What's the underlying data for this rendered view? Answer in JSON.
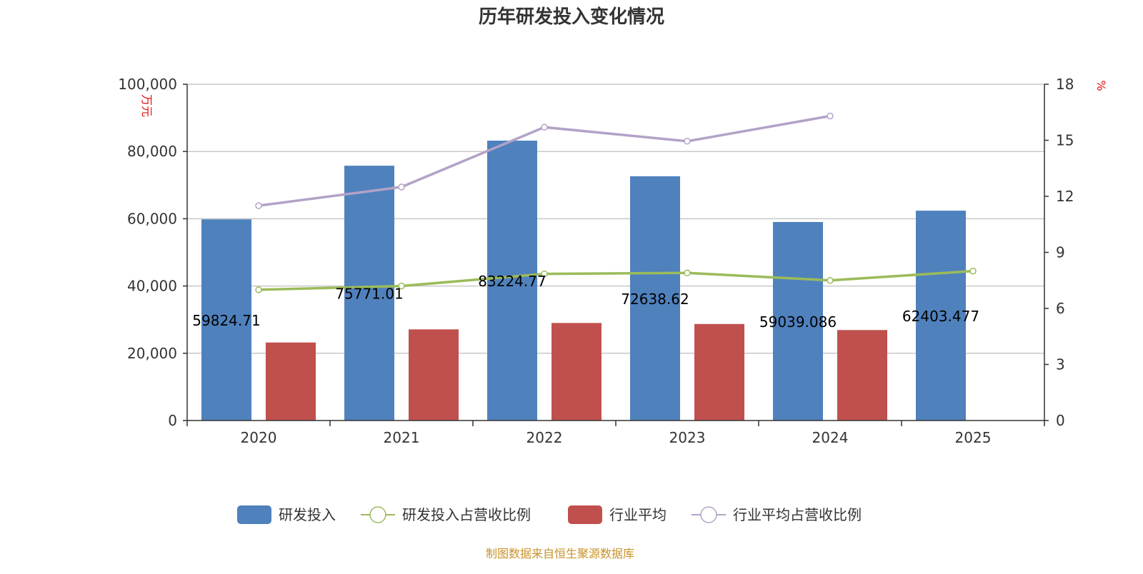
{
  "chart_data": {
    "type": "bar",
    "title": "历年研发投入变化情况",
    "categories": [
      "2020",
      "2021",
      "2022",
      "2023",
      "2024",
      "2025"
    ],
    "y_left": {
      "unit": "万元",
      "ylim": [
        0,
        100000
      ],
      "ticks": [
        0,
        20000,
        40000,
        60000,
        80000,
        100000
      ],
      "tick_labels": [
        "0",
        "20,000",
        "40,000",
        "60,000",
        "80,000",
        "100,000"
      ]
    },
    "y_right": {
      "unit": "%",
      "ylim": [
        0,
        18
      ],
      "ticks": [
        0,
        3,
        6,
        9,
        12,
        15,
        18
      ],
      "tick_labels": [
        "0",
        "3",
        "6",
        "9",
        "12",
        "15",
        "18"
      ]
    },
    "series": [
      {
        "name": "研发投入",
        "type": "bar",
        "axis": "left",
        "color": "#4f81bd",
        "values": [
          59824.71,
          75771.01,
          83224.77,
          72638.62,
          59039.086,
          62403.477
        ],
        "data_labels": [
          "59824.71",
          "75771.01",
          "83224.77",
          "72638.62",
          "59039.086",
          "62403.477"
        ]
      },
      {
        "name": "研发投入占营收比例",
        "type": "line",
        "axis": "right",
        "color": "#9bbb59",
        "values": [
          7.0,
          7.2,
          7.85,
          7.9,
          7.5,
          8.0
        ]
      },
      {
        "name": "行业平均",
        "type": "bar",
        "axis": "left",
        "color": "#c0504d",
        "values": [
          23200,
          27100,
          29000,
          28700,
          26900,
          null
        ]
      },
      {
        "name": "行业平均占营收比例",
        "type": "line",
        "axis": "right",
        "color": "#b3a2c7",
        "values": [
          11.5,
          12.5,
          15.7,
          14.95,
          16.3,
          null
        ]
      }
    ],
    "grid": true,
    "legend": "bottom-center"
  },
  "footer": {
    "source": "制图数据来自恒生聚源数据库"
  }
}
